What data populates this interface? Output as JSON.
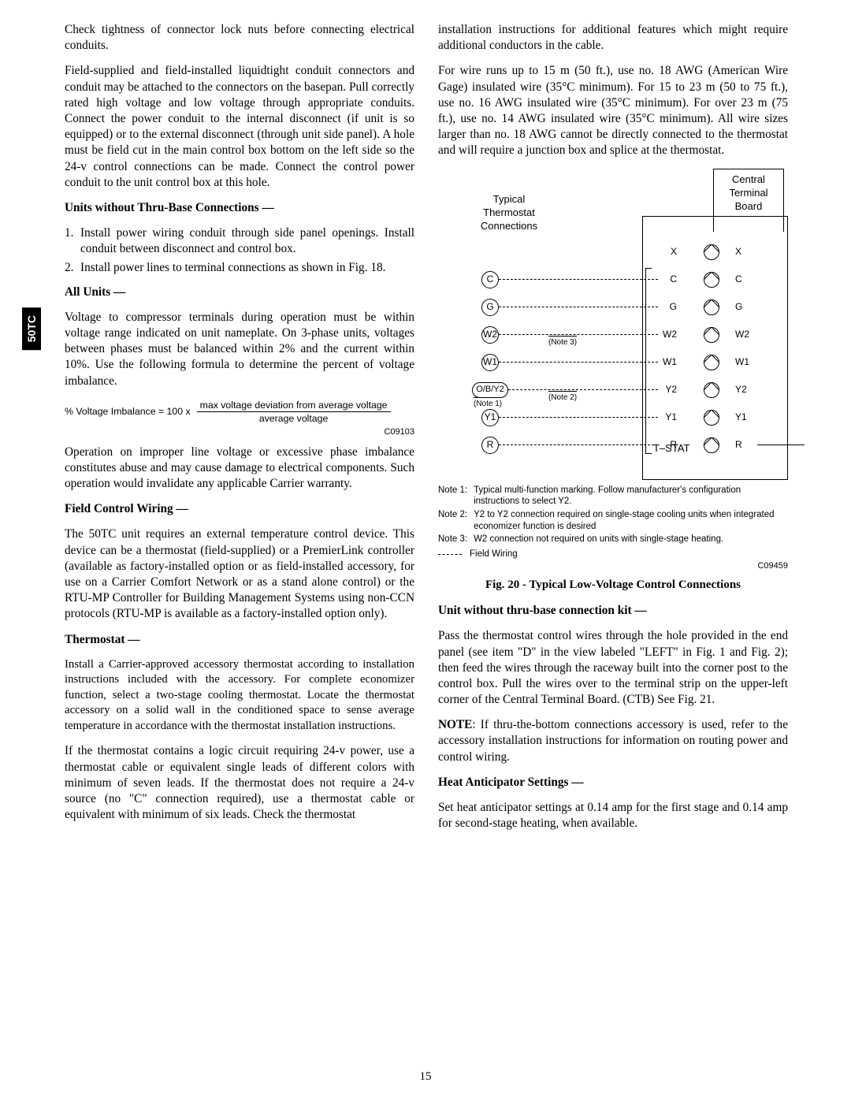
{
  "sideTab": "50TC",
  "pageNumber": "15",
  "left": {
    "p1": "Check tightness of connector lock nuts before connecting electrical conduits.",
    "p2": "Field-supplied and field-installed liquidtight conduit connectors and conduit may be attached to the connectors on the basepan. Pull correctly rated high voltage and low voltage through appropriate conduits. Connect the power conduit to the internal disconnect (if unit is so equipped) or to the external disconnect (through unit side panel). A hole must be field cut in the main control box bottom on the left side so the 24-v control connections can be made. Connect the control power conduit to the unit control box at this hole.",
    "h_thru": "Units without Thru-Base Connections —",
    "li1": "Install power wiring conduit through side panel openings. Install conduit between disconnect and control box.",
    "li2": "Install power lines to terminal connections as shown in Fig. 18.",
    "h_all": "All Units —",
    "p3": "Voltage to compressor terminals during operation must be within voltage range indicated on unit nameplate. On 3-phase units, voltages between phases must be balanced within 2% and the current within 10%. Use the following formula to determine the percent of voltage imbalance.",
    "formula_lhs": "% Voltage Imbalance   =   100 x",
    "formula_top": "max voltage deviation from average voltage",
    "formula_bot": "average voltage",
    "code1": "C09103",
    "p4": "Operation on improper line voltage or excessive phase imbalance constitutes abuse and may cause damage to electrical components. Such operation would invalidate any applicable Carrier warranty.",
    "h_field": "Field Control Wiring —",
    "p5": "The 50TC unit requires an external temperature control device. This device can be a thermostat (field-supplied) or a PremierLink controller (available as factory-installed option or as field-installed accessory, for use on a Carrier Comfort Network or as a stand alone control) or the RTU-MP Controller for Building Management Systems using non-CCN protocols (RTU-MP is available as a factory-installed option only).",
    "h_therm": "Thermostat —",
    "p6": "Install a Carrier-approved accessory thermostat according to installation instructions included with the accessory. For complete economizer function, select a two-stage cooling thermostat. Locate the thermostat accessory on a solid wall in the conditioned space to sense average temperature in accordance with the thermostat installation instructions.",
    "p7": "If the thermostat contains a logic circuit requiring 24-v power, use a thermostat cable or equivalent single leads of different colors with minimum of seven leads. If the thermostat does not require a 24-v source (no \"C\" connection required), use a thermostat cable or equivalent with minimum of six leads. Check the thermostat"
  },
  "right": {
    "p1": "installation instructions for additional features which might require additional conductors in the cable.",
    "p2": "For wire runs up to 15 m (50 ft.), use no. 18 AWG (American Wire Gage) insulated wire (35°C minimum). For 15 to 23 m (50 to 75 ft.), use no. 16 AWG insulated wire (35°C minimum). For over 23 m (75 ft.), use no. 14 AWG insulated wire (35°C minimum). All wire sizes larger than no. 18 AWG cannot be directly connected to the thermostat and will require a junction box and splice at the thermostat.",
    "diagram": {
      "tstatLabel": "Typical\nThermostat\nConnections",
      "ctbLabel": "Central\nTerminal\nBoard",
      "rows": [
        {
          "t": "",
          "l": "X",
          "r": "X"
        },
        {
          "t": "C",
          "l": "C",
          "r": "C"
        },
        {
          "t": "G",
          "l": "G",
          "r": "G"
        },
        {
          "t": "W2",
          "l": "W2",
          "r": "W2",
          "noteMid": "(Note 3)"
        },
        {
          "t": "W1",
          "l": "W1",
          "r": "W1"
        },
        {
          "t": "O/B/Y2",
          "l": "Y2",
          "r": "Y2",
          "oval": true,
          "noteLeft": "(Note 1)",
          "noteMid": "(Note 2)"
        },
        {
          "t": "Y1",
          "l": "Y1",
          "r": "Y1"
        },
        {
          "t": "R",
          "l": "R",
          "r": "R",
          "wireOut": true
        }
      ],
      "tstatBottom": "T–STAT"
    },
    "note1l": "Note 1:",
    "note1": "Typical multi-function marking. Follow manufacturer's configuration instructions to select Y2.",
    "note2l": "Note 2:",
    "note2": "Y2 to Y2 connection required on single-stage cooling units when integrated economizer function is desired",
    "note3l": "Note 3:",
    "note3": "W2 connection not required on units with single-stage heating.",
    "legend": "Field Wiring",
    "code2": "C09459",
    "figCaption": "Fig. 20 - Typical Low-Voltage Control Connections",
    "h_unit": "Unit without thru-base connection kit —",
    "p3": "Pass the thermostat control wires through the hole provided in the end panel (see item \"D\" in the view labeled \"LEFT\" in Fig. 1 and Fig. 2); then feed the wires through the raceway built into the corner post to the control box. Pull the wires over to the terminal strip on the upper-left corner of the Central Terminal  Board. (CTB) See Fig. 21.",
    "noteLabel": "NOTE",
    "p4": ":    If thru-the-bottom connections accessory is used, refer to the accessory installation instructions for information on routing power and control wiring.",
    "h_heat": "Heat Anticipator Settings —",
    "p5": "Set heat anticipator settings at 0.14 amp for the first stage and 0.14 amp for second-stage heating, when available."
  }
}
